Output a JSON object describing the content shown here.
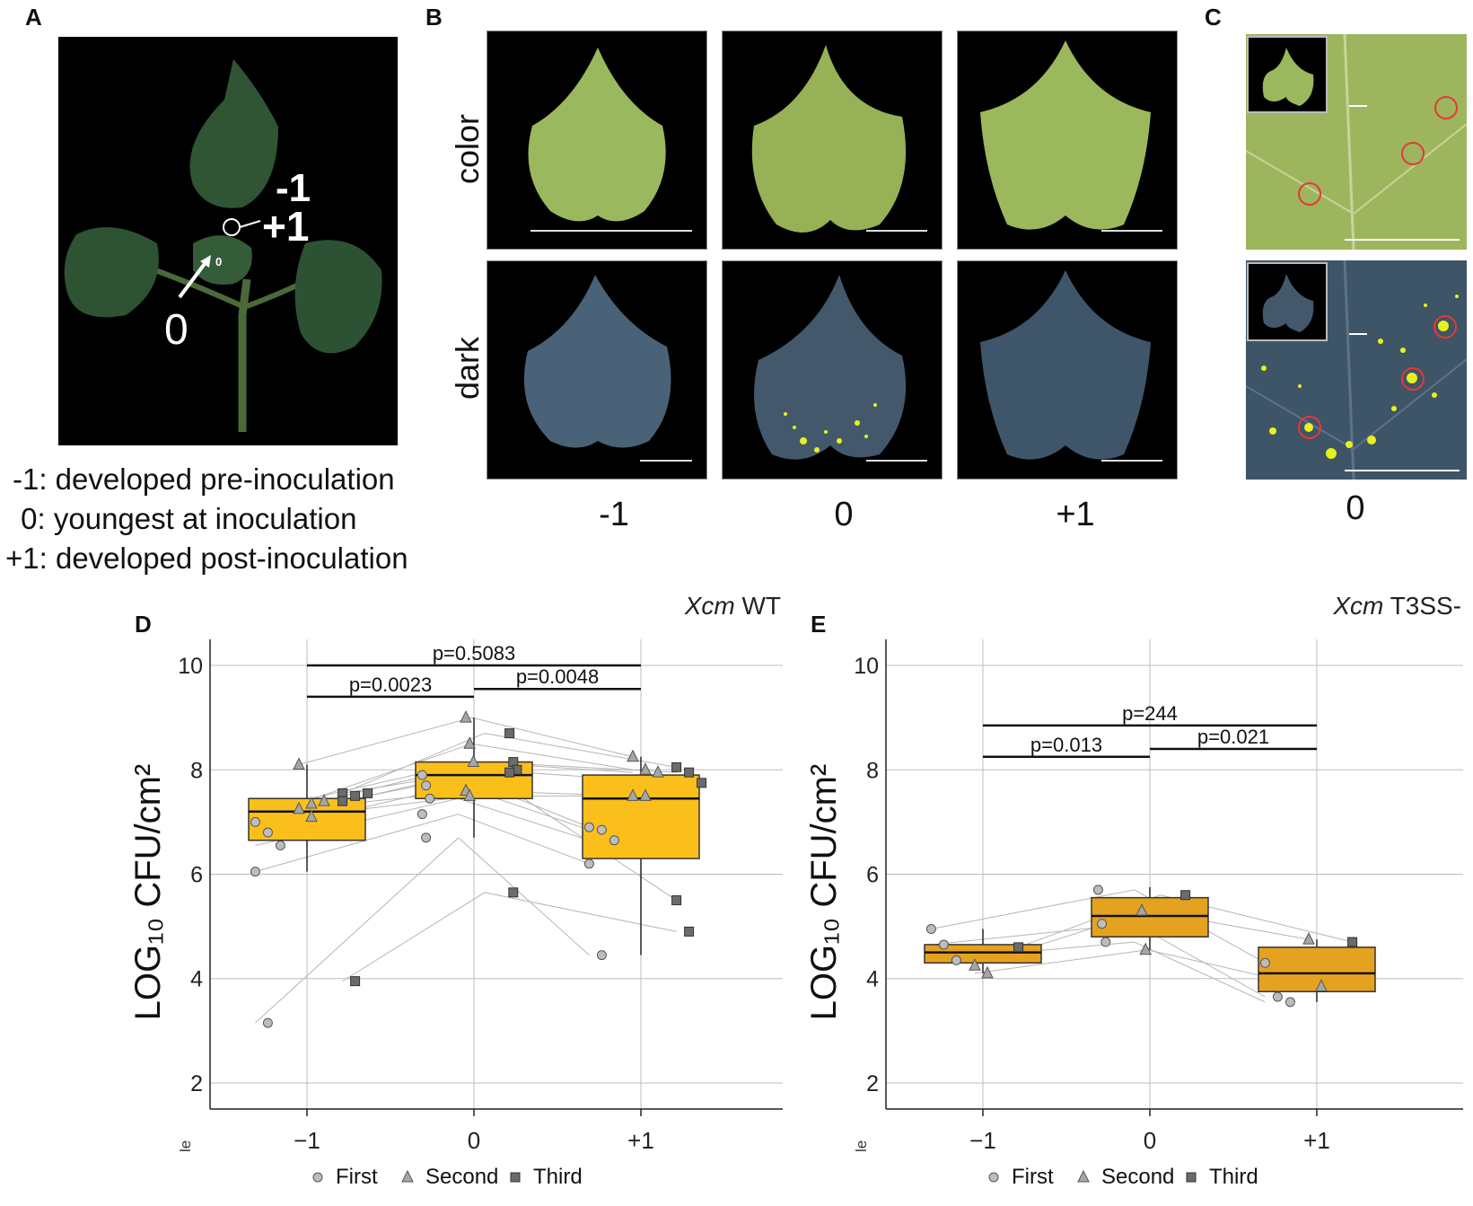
{
  "panel_labels": {
    "a": "A",
    "b": "B",
    "c": "C",
    "d": "D",
    "e": "E"
  },
  "panel_a": {
    "leaf_labels": {
      "minus1": "-1",
      "plus1": "+1",
      "zero": "0",
      "zero_small": "0"
    },
    "legend": [
      "-1: developed pre-inoculation",
      " 0: youngest at inoculation",
      "+1: developed post-inoculation"
    ]
  },
  "panel_b": {
    "row_labels": [
      "color",
      "dark"
    ],
    "column_labels": [
      "-1",
      "0",
      "+1"
    ]
  },
  "panel_c": {
    "column_label": "0"
  },
  "colors": {
    "box_fill_d": "#FBBF1C",
    "box_fill_e": "#E5A21E",
    "grid": "#bdbdbd",
    "leaf_green": "#9bb55a",
    "leaf_dark": "#3f5467",
    "fluor": "#e8f21a",
    "circle": "#e53935"
  },
  "chart_data": [
    {
      "type": "box",
      "panel": "D",
      "title": "Xcm WT",
      "title_italic": "Xcm",
      "title_rest": " WT",
      "ylabel": "LOG₁₀ CFU/cm²",
      "xlabel": "",
      "categories": [
        "−1",
        "0",
        "+1"
      ],
      "ylim": [
        1.5,
        10.5
      ],
      "yticks": [
        2,
        4,
        6,
        8,
        10
      ],
      "grid": true,
      "legend": [
        "First",
        "Second",
        "Third"
      ],
      "legend_placement": "bottom",
      "axis_corner_label": "le",
      "boxes": [
        {
          "category": "−1",
          "q1": 6.65,
          "median": 7.2,
          "q3": 7.45,
          "whisker_low": 6.05,
          "whisker_high": 8.1
        },
        {
          "category": "0",
          "q1": 7.45,
          "median": 7.9,
          "q3": 8.15,
          "whisker_low": 6.7,
          "whisker_high": 9.0
        },
        {
          "category": "+1",
          "q1": 6.3,
          "median": 7.45,
          "q3": 7.9,
          "whisker_low": 4.45,
          "whisker_high": 8.25
        }
      ],
      "series": [
        {
          "name": "First",
          "points": [
            [
              -1,
              7.0
            ],
            [
              -1,
              6.8
            ],
            [
              -1,
              6.55
            ],
            [
              -1,
              6.05
            ],
            [
              -1,
              3.15
            ],
            [
              0,
              7.9
            ],
            [
              0,
              7.7
            ],
            [
              0,
              7.45
            ],
            [
              0,
              7.15
            ],
            [
              0,
              6.7
            ],
            [
              1,
              6.9
            ],
            [
              1,
              6.85
            ],
            [
              1,
              6.65
            ],
            [
              1,
              6.2
            ],
            [
              1,
              4.45
            ]
          ]
        },
        {
          "name": "Second",
          "points": [
            [
              -1,
              8.1
            ],
            [
              -1,
              7.35
            ],
            [
              -1,
              7.4
            ],
            [
              -1,
              7.25
            ],
            [
              -1,
              7.1
            ],
            [
              0,
              9.0
            ],
            [
              0,
              8.5
            ],
            [
              0,
              8.15
            ],
            [
              0,
              7.6
            ],
            [
              0,
              7.5
            ],
            [
              1,
              8.25
            ],
            [
              1,
              8.0
            ],
            [
              1,
              7.95
            ],
            [
              1,
              7.5
            ],
            [
              1,
              7.5
            ]
          ]
        },
        {
          "name": "Third",
          "points": [
            [
              -1,
              7.55
            ],
            [
              -1,
              7.5
            ],
            [
              -1,
              7.55
            ],
            [
              -1,
              7.4
            ],
            [
              -1,
              3.95
            ],
            [
              0,
              8.7
            ],
            [
              0,
              8.15
            ],
            [
              0,
              8.0
            ],
            [
              0,
              7.95
            ],
            [
              0,
              5.65
            ],
            [
              1,
              8.05
            ],
            [
              1,
              7.95
            ],
            [
              1,
              7.75
            ],
            [
              1,
              5.5
            ],
            [
              1,
              4.9
            ]
          ]
        }
      ],
      "comparisons": [
        {
          "from": "−1",
          "to": "0",
          "label": "p=0.0023",
          "y": 9.4
        },
        {
          "from": "0",
          "to": "+1",
          "label": "p=0.0048",
          "y": 9.55
        },
        {
          "from": "−1",
          "to": "+1",
          "label": "p=0.5083",
          "y": 10.0
        }
      ]
    },
    {
      "type": "box",
      "panel": "E",
      "title": "Xcm T3SS-",
      "title_italic": "Xcm",
      "title_rest": " T3SS-",
      "ylabel": "LOG₁₀ CFU/cm²",
      "xlabel": "",
      "categories": [
        "−1",
        "0",
        "+1"
      ],
      "ylim": [
        1.5,
        10.5
      ],
      "yticks": [
        2,
        4,
        6,
        8,
        10
      ],
      "grid": true,
      "legend": [
        "First",
        "Second",
        "Third"
      ],
      "legend_placement": "bottom",
      "axis_corner_label": "le",
      "boxes": [
        {
          "category": "−1",
          "q1": 4.3,
          "median": 4.5,
          "q3": 4.65,
          "whisker_low": 4.1,
          "whisker_high": 4.95
        },
        {
          "category": "0",
          "q1": 4.8,
          "median": 5.2,
          "q3": 5.55,
          "whisker_low": 4.55,
          "whisker_high": 5.75
        },
        {
          "category": "+1",
          "q1": 3.75,
          "median": 4.1,
          "q3": 4.6,
          "whisker_low": 3.55,
          "whisker_high": 4.75
        }
      ],
      "series": [
        {
          "name": "First",
          "points": [
            [
              -1,
              4.95
            ],
            [
              -1,
              4.65
            ],
            [
              -1,
              4.35
            ],
            [
              0,
              5.7
            ],
            [
              0,
              5.05
            ],
            [
              0,
              4.7
            ],
            [
              1,
              4.3
            ],
            [
              1,
              3.65
            ],
            [
              1,
              3.55
            ]
          ]
        },
        {
          "name": "Second",
          "points": [
            [
              -1,
              4.25
            ],
            [
              -1,
              4.1
            ],
            [
              0,
              5.3
            ],
            [
              0,
              4.55
            ],
            [
              1,
              4.75
            ],
            [
              1,
              3.85
            ]
          ]
        },
        {
          "name": "Third",
          "points": [
            [
              -1,
              4.6
            ],
            [
              0,
              5.6
            ],
            [
              1,
              4.7
            ]
          ]
        }
      ],
      "comparisons": [
        {
          "from": "−1",
          "to": "0",
          "label": "p=0.013",
          "y": 8.25
        },
        {
          "from": "0",
          "to": "+1",
          "label": "p=0.021",
          "y": 8.4
        },
        {
          "from": "−1",
          "to": "+1",
          "label": "p=244",
          "y": 8.85
        }
      ]
    }
  ]
}
